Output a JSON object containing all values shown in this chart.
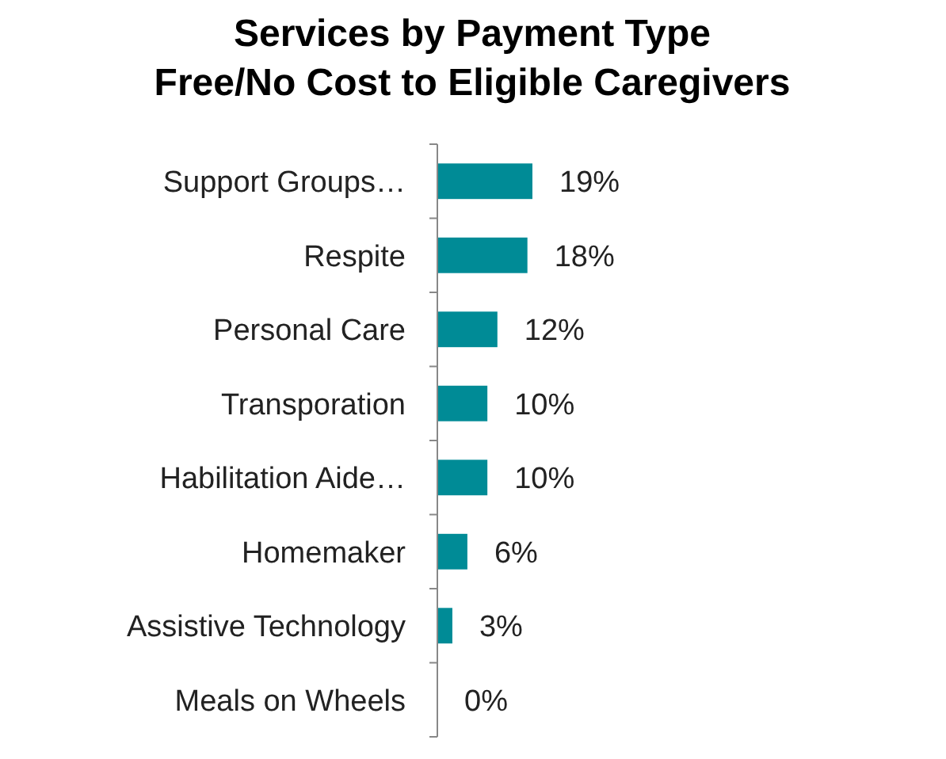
{
  "chart_data": {
    "type": "bar",
    "orientation": "horizontal",
    "title": "Services by Payment Type\nFree/No Cost to Eligible Caregivers",
    "categories": [
      "Support Groups…",
      "Respite",
      "Personal Care",
      "Transporation",
      "Habilitation Aide…",
      "Homemaker",
      "Assistive Technology",
      "Meals on Wheels"
    ],
    "values": [
      19,
      18,
      12,
      10,
      10,
      6,
      3,
      0
    ],
    "value_labels": [
      "19%",
      "18%",
      "12%",
      "10%",
      "10%",
      "6%",
      "3%",
      "0%"
    ],
    "color": "#008b96"
  }
}
